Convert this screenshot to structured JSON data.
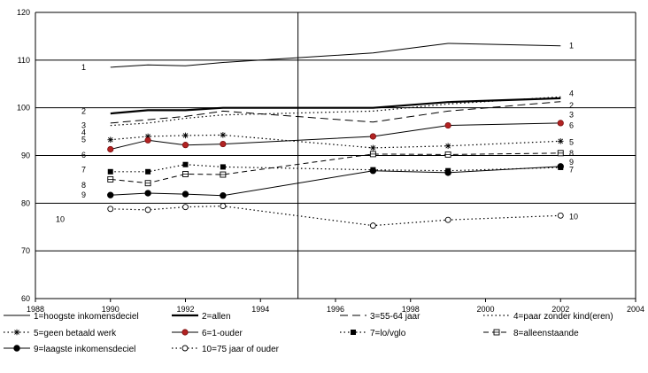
{
  "chart_data": {
    "type": "line",
    "title": "",
    "xlabel": "",
    "ylabel": "",
    "xlim": [
      1988,
      2004
    ],
    "ylim": [
      60,
      120
    ],
    "x_ticks": [
      "1988",
      "1990",
      "1992",
      "1994",
      "1996",
      "1998",
      "2000",
      "2002",
      "2004"
    ],
    "y_ticks": [
      "60",
      "70",
      "80",
      "90",
      "100",
      "110",
      "120"
    ],
    "grid": "horizontal",
    "reference_line_x": 1995,
    "legend_position": "bottom",
    "series": [
      {
        "name": "1=hoogste inkomensdeciel",
        "label": "1",
        "style": "thin-solid",
        "marker": "none",
        "points": [
          [
            1990,
            108.5
          ],
          [
            1991,
            109
          ],
          [
            1992,
            108.8
          ],
          [
            1993,
            109.5
          ],
          [
            1997,
            111.5
          ],
          [
            1999,
            113.5
          ],
          [
            2002,
            113
          ]
        ]
      },
      {
        "name": "2=allen",
        "label": "2",
        "style": "thick-solid",
        "marker": "none",
        "points": [
          [
            1990,
            98.8
          ],
          [
            1991,
            99.5
          ],
          [
            1992,
            99.5
          ],
          [
            1993,
            100
          ],
          [
            1997,
            100
          ],
          [
            1999,
            101.2
          ],
          [
            2002,
            102
          ]
        ]
      },
      {
        "name": "3=55-64 jaar",
        "label": "3",
        "style": "long-dash",
        "marker": "none",
        "points": [
          [
            1990,
            96.8
          ],
          [
            1991,
            97.5
          ],
          [
            1992,
            98.2
          ],
          [
            1993,
            99.3
          ],
          [
            1997,
            97
          ],
          [
            1999,
            99.3
          ],
          [
            2002,
            101.3
          ]
        ]
      },
      {
        "name": "4=paar zonder kind(eren)",
        "label": "4",
        "style": "dotted",
        "marker": "none",
        "points": [
          [
            1990,
            96.3
          ],
          [
            1991,
            96.8
          ],
          [
            1992,
            97.8
          ],
          [
            1993,
            98.5
          ],
          [
            1997,
            99.3
          ],
          [
            1999,
            100.8
          ],
          [
            2002,
            102.3
          ]
        ]
      },
      {
        "name": "5=geen betaald werk",
        "label": "5",
        "style": "dotted",
        "marker": "star",
        "points": [
          [
            1990,
            93.3
          ],
          [
            1991,
            94
          ],
          [
            1992,
            94.2
          ],
          [
            1993,
            94.3
          ],
          [
            1997,
            91.6
          ],
          [
            1999,
            92
          ],
          [
            2002,
            93
          ]
        ]
      },
      {
        "name": "6=1-ouder",
        "label": "6",
        "style": "thin-solid",
        "marker": "red-dot",
        "points": [
          [
            1990,
            91.3
          ],
          [
            1991,
            93.2
          ],
          [
            1992,
            92.2
          ],
          [
            1993,
            92.4
          ],
          [
            1997,
            94
          ],
          [
            1999,
            96.3
          ],
          [
            2002,
            96.8
          ]
        ]
      },
      {
        "name": "7=lo/vglo",
        "label": "7",
        "style": "dotted",
        "marker": "filled-square",
        "points": [
          [
            1990,
            86.6
          ],
          [
            1991,
            86.6
          ],
          [
            1992,
            88.1
          ],
          [
            1993,
            87.6
          ],
          [
            1997,
            87
          ],
          [
            1999,
            86.8
          ],
          [
            2002,
            87.5
          ]
        ]
      },
      {
        "name": "8=alleenstaande",
        "label": "8",
        "style": "dash",
        "marker": "open-square",
        "points": [
          [
            1990,
            85
          ],
          [
            1991,
            84.2
          ],
          [
            1992,
            86.1
          ],
          [
            1993,
            86
          ],
          [
            1997,
            90.3
          ],
          [
            1999,
            90.2
          ],
          [
            2002,
            90.5
          ]
        ]
      },
      {
        "name": "9=laagste inkomensdeciel",
        "label": "9",
        "style": "thin-solid",
        "marker": "filled-dot",
        "points": [
          [
            1990,
            81.7
          ],
          [
            1991,
            82.1
          ],
          [
            1992,
            81.9
          ],
          [
            1993,
            81.6
          ],
          [
            1997,
            86.8
          ],
          [
            1999,
            86.4
          ],
          [
            2002,
            87.7
          ]
        ]
      },
      {
        "name": "10=75 jaar of ouder",
        "label": "10",
        "style": "dotted",
        "marker": "open-dot",
        "points": [
          [
            1990,
            78.8
          ],
          [
            1991,
            78.6
          ],
          [
            1992,
            79.2
          ],
          [
            1993,
            79.4
          ],
          [
            1997,
            75.3
          ],
          [
            1999,
            76.5
          ],
          [
            2002,
            77.4
          ]
        ]
      }
    ],
    "left_labels": [
      "1",
      "2",
      "3",
      "4",
      "5",
      "6",
      "7",
      "8",
      "9",
      "10"
    ],
    "right_labels": [
      "1",
      "4",
      "2",
      "3",
      "6",
      "5",
      "8",
      "9",
      "7",
      "10"
    ]
  }
}
